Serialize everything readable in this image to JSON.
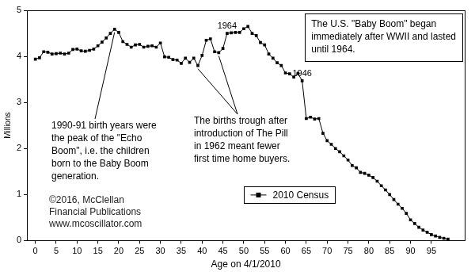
{
  "chart_data": {
    "type": "line",
    "x": [
      0,
      1,
      2,
      3,
      4,
      5,
      6,
      7,
      8,
      9,
      10,
      11,
      12,
      13,
      14,
      15,
      16,
      17,
      18,
      19,
      20,
      21,
      22,
      23,
      24,
      25,
      26,
      27,
      28,
      29,
      30,
      31,
      32,
      33,
      34,
      35,
      36,
      37,
      38,
      39,
      40,
      41,
      42,
      43,
      44,
      45,
      46,
      47,
      48,
      49,
      50,
      51,
      52,
      53,
      54,
      55,
      56,
      57,
      58,
      59,
      60,
      61,
      62,
      63,
      64,
      65,
      66,
      67,
      68,
      69,
      70,
      71,
      72,
      73,
      74,
      75,
      76,
      77,
      78,
      79,
      80,
      81,
      82,
      83,
      84,
      85,
      86,
      87,
      88,
      89,
      90,
      91,
      92,
      93,
      94,
      95,
      96,
      97,
      98,
      99
    ],
    "series": [
      {
        "name": "2010 Census",
        "color": "#000000",
        "marker": "square",
        "line_style": "solid",
        "values": [
          3.94,
          3.97,
          4.1,
          4.09,
          4.05,
          4.06,
          4.07,
          4.05,
          4.07,
          4.15,
          4.16,
          4.12,
          4.11,
          4.13,
          4.16,
          4.23,
          4.31,
          4.4,
          4.5,
          4.59,
          4.52,
          4.32,
          4.26,
          4.2,
          4.25,
          4.26,
          4.2,
          4.22,
          4.23,
          4.2,
          4.29,
          3.99,
          3.98,
          3.93,
          3.92,
          3.85,
          3.96,
          3.87,
          3.96,
          3.8,
          4.02,
          4.35,
          4.38,
          4.1,
          4.08,
          4.17,
          4.5,
          4.51,
          4.52,
          4.52,
          4.6,
          4.65,
          4.5,
          4.45,
          4.3,
          4.25,
          4.05,
          3.96,
          3.86,
          3.8,
          3.64,
          3.62,
          3.55,
          3.63,
          3.47,
          2.65,
          2.68,
          2.64,
          2.65,
          2.33,
          2.17,
          2.09,
          2.0,
          1.93,
          1.84,
          1.75,
          1.63,
          1.58,
          1.48,
          1.46,
          1.42,
          1.37,
          1.29,
          1.19,
          1.1,
          1.0,
          0.89,
          0.79,
          0.7,
          0.59,
          0.45,
          0.37,
          0.29,
          0.23,
          0.18,
          0.13,
          0.1,
          0.07,
          0.05,
          0.03
        ]
      }
    ],
    "xlim": [
      -2,
      103
    ],
    "ylim": [
      0,
      5
    ],
    "xticks": [
      0,
      5,
      10,
      15,
      20,
      25,
      30,
      35,
      40,
      45,
      50,
      55,
      60,
      65,
      70,
      75,
      80,
      85,
      90,
      95
    ],
    "yticks": [
      0,
      1,
      2,
      3,
      4,
      5
    ],
    "xlabel": "Age on 4/1/2010",
    "ylabel": "Millions",
    "grid": false,
    "legend": "bottom",
    "point_labels": [
      {
        "x": 46,
        "text": "1964"
      },
      {
        "x": 64,
        "text": "1946"
      }
    ],
    "annotations": [
      {
        "text": [
          "The U.S. \"Baby Boom\" began",
          "immediately after WWII and lasted",
          "until 1964."
        ]
      },
      {
        "text": [
          "1990-91 birth years were",
          "the peak of the \"Echo",
          "Boom\", i.e. the children",
          "born to the Baby Boom",
          "generation."
        ]
      },
      {
        "text": [
          "The births trough after",
          "introduction of The Pill",
          "in 1962 meant fewer",
          "first time home buyers."
        ]
      },
      {
        "text": [
          "©2016, McClellan",
          "Financial Publications",
          "www.mcoscillator.com"
        ]
      }
    ]
  }
}
